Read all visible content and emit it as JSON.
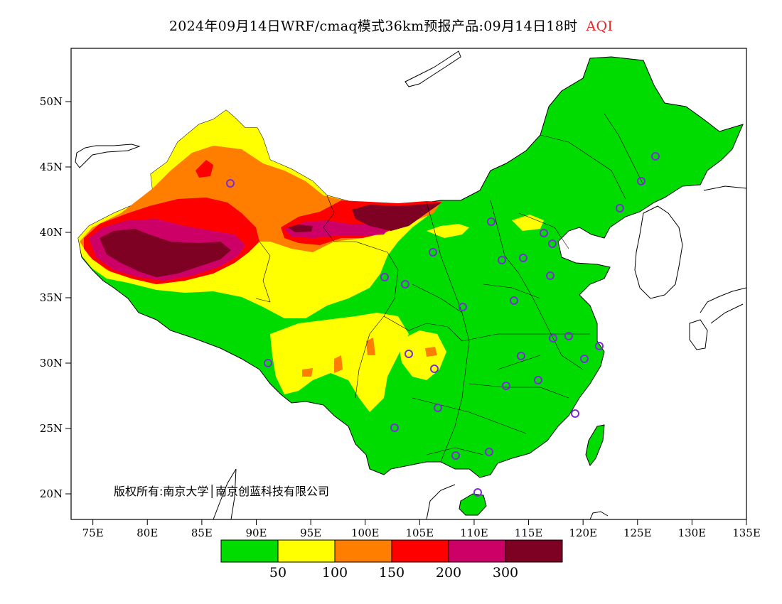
{
  "title": {
    "main": "2024年09月14日WRF/cmaq模式36km预报产品:09月14日18时",
    "aqi": "AQI"
  },
  "copyright": "版权所有:南京大学│南京创蓝科技有限公司",
  "axes": {
    "lon_labels": [
      "75E",
      "80E",
      "85E",
      "90E",
      "95E",
      "100E",
      "105E",
      "110E",
      "115E",
      "120E",
      "125E",
      "130E",
      "135E"
    ],
    "lat_labels": [
      "50N",
      "45N",
      "40N",
      "35N",
      "30N",
      "25N",
      "20N"
    ]
  },
  "legend": {
    "colors": [
      "#00dc00",
      "#ffff00",
      "#ff7e00",
      "#ff0000",
      "#cc0066",
      "#7e0023"
    ],
    "labels": [
      "50",
      "100",
      "150",
      "200",
      "300"
    ]
  },
  "colors": {
    "good": "#00dc00",
    "moderate": "#ffff00",
    "usg": "#ff7e00",
    "unhealthy": "#ff0000",
    "very_unhealthy": "#cc0066",
    "hazardous": "#7e0023",
    "station": "#7b2bd8"
  }
}
